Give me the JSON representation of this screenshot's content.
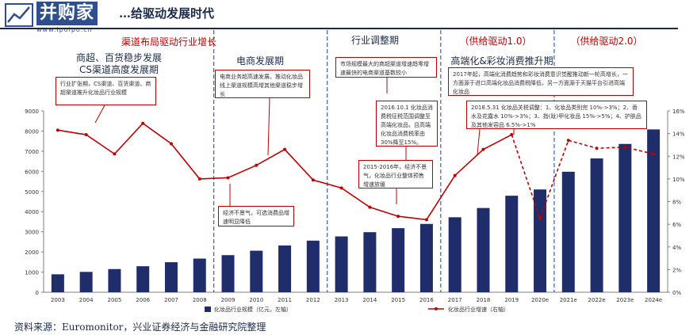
{
  "logo": {
    "brand": "并购家",
    "url": "www.ipoipo.cn"
  },
  "page_title": "…给驱动发展时代",
  "source": "资料来源：Euromonitor，兴业证券经济与金融研究院整理",
  "colors": {
    "bar": "#1f2d6b",
    "line": "#c00000",
    "divider": "#3b5fb5"
  },
  "phases": [
    {
      "label": "渠道布局驱动行业增长",
      "color": "red"
    },
    {
      "label": "商超、百货稳步发展",
      "color": "dark"
    },
    {
      "label": "CS渠道高度发展期",
      "color": "dark"
    },
    {
      "label": "电商发展期",
      "color": "dark"
    },
    {
      "label": "行业调整期",
      "color": "dark"
    },
    {
      "label": "高端化&彩妆消费推升期",
      "color": "dark"
    },
    {
      "label": "（供给驱动1.0）",
      "color": "red"
    },
    {
      "label": "（供给驱动2.0）",
      "color": "red"
    }
  ],
  "annotations": [
    {
      "text": "行业扩张期，CS渠道、百货渠道、商超渠道推升化妆品行业规模"
    },
    {
      "text": "电商业务超高速发展，推动化妆品线上渠道规模高增其他渠道稳步增长"
    },
    {
      "text": "经济不景气，可选消费品增速明显降低"
    },
    {
      "text": "市场规模最大的商超渠道增速趋零增速最快的电商渠道基数较小"
    },
    {
      "text": "2016.10.1 化妆品消费税征税范围调整至高端化妆品，且高端化妆品消费税率由30%降至15%。"
    },
    {
      "text": "2015-2016年，经济不景气，化妆品行业整体预售增速放缓"
    },
    {
      "text": "2017年起，高端化消费趋势和彩妆消费意识觉醒推动新一轮高增长，一方面源于进口高端化妆品消费税降低，另一方面源于天猫平台引进高端化妆品"
    },
    {
      "text": "2018.5.31 化妆品关税调整：1、化妆品类别完 10%->3%；2、香水及花露水 10%->3%；3、指(趾)甲化妆品 15%->5%；4、护肤品及其他发容品 6.5%->1%"
    }
  ],
  "chart_data": {
    "type": "bar",
    "categories": [
      "2003",
      "2004",
      "2005",
      "2006",
      "2007",
      "2008",
      "2009",
      "2010",
      "2011",
      "2012",
      "2013",
      "2014",
      "2015",
      "2016",
      "2017",
      "2018",
      "2019",
      "2020e",
      "2021e",
      "2022e",
      "2023e",
      "2024e"
    ],
    "series": [
      {
        "name": "化妆品行业规模（亿元，左轴）",
        "type": "bar",
        "axis": "left",
        "values": [
          890,
          1010,
          1150,
          1290,
          1490,
          1670,
          1840,
          2060,
          2320,
          2560,
          2770,
          2980,
          3180,
          3390,
          3720,
          4180,
          4790,
          5100,
          5980,
          6640,
          7360,
          8080
        ]
      },
      {
        "name": "化妆品行业增速（右轴）",
        "type": "line",
        "axis": "right",
        "values": [
          14.3,
          13.9,
          12.2,
          14.9,
          13.1,
          10.0,
          10.1,
          11.2,
          12.6,
          9.9,
          9.2,
          7.5,
          6.7,
          6.4,
          10.3,
          12.6,
          13.9,
          6.5,
          13.4,
          12.7,
          12.8,
          12.2
        ],
        "dashed_from": "2020e"
      }
    ],
    "y_left": {
      "min": 0,
      "max": 9000,
      "ticks": [
        "0",
        "1000",
        "2000",
        "3000",
        "4000",
        "5000",
        "6000",
        "7000",
        "8000",
        "9000"
      ]
    },
    "y_right": {
      "min": 0,
      "max": 16,
      "ticks": [
        "0%",
        "2%",
        "4%",
        "6%",
        "8%",
        "10%",
        "12%",
        "14%",
        "16%"
      ]
    },
    "phase_boundaries": [
      "2008|2009",
      "2012|2013",
      "2016|2017",
      "2020e|2021e"
    ],
    "grid": false,
    "legend": "bottom"
  }
}
